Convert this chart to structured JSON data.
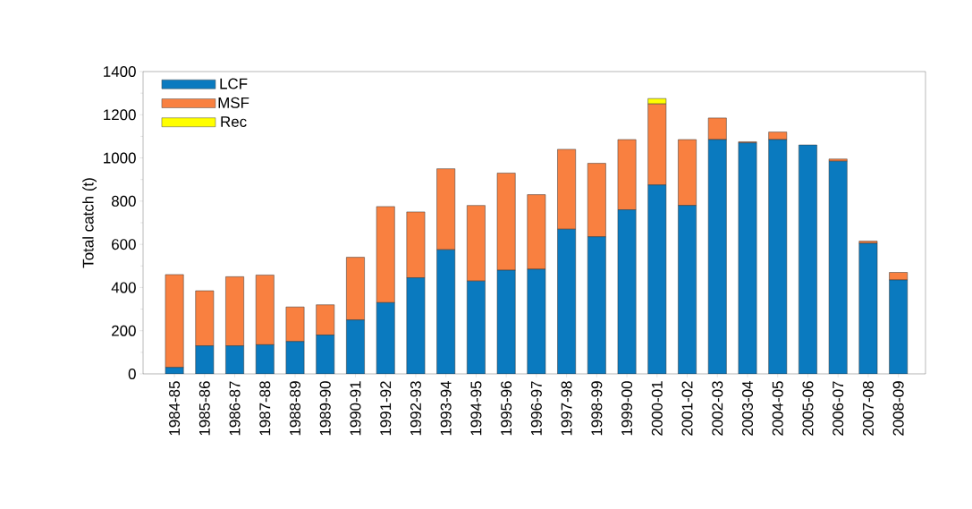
{
  "chart_data": {
    "type": "bar",
    "stacked": true,
    "ylabel": "Total catch (t)",
    "categories": [
      "1984-85",
      "1985-86",
      "1986-87",
      "1987-88",
      "1988-89",
      "1989-90",
      "1990-91",
      "1991-92",
      "1992-93",
      "1993-94",
      "1994-95",
      "1995-96",
      "1996-97",
      "1997-98",
      "1998-99",
      "1999-00",
      "2000-01",
      "2001-02",
      "2002-03",
      "2003-04",
      "2004-05",
      "2005-06",
      "2006-07",
      "2007-08",
      "2008-09"
    ],
    "series": [
      {
        "name": "LCF",
        "color": "#0a7abf",
        "values": [
          30,
          130,
          130,
          135,
          150,
          180,
          250,
          330,
          445,
          575,
          430,
          480,
          485,
          670,
          635,
          760,
          875,
          780,
          1085,
          1070,
          1085,
          1060,
          985,
          605,
          435
        ]
      },
      {
        "name": "MSF",
        "color": "#f98040",
        "values": [
          430,
          255,
          320,
          323,
          160,
          140,
          290,
          445,
          305,
          375,
          350,
          450,
          345,
          370,
          340,
          325,
          375,
          305,
          100,
          5,
          35,
          0,
          10,
          10,
          35
        ]
      },
      {
        "name": "Rec",
        "color": "#ffff00",
        "values": [
          0,
          0,
          0,
          0,
          0,
          0,
          0,
          0,
          0,
          0,
          0,
          0,
          0,
          0,
          0,
          0,
          25,
          0,
          0,
          0,
          0,
          0,
          0,
          0,
          0
        ]
      }
    ],
    "ylim": [
      0,
      1400
    ],
    "yticks": [
      0,
      200,
      400,
      600,
      800,
      1000,
      1200,
      1400
    ],
    "legend": "top left",
    "grid": false
  }
}
